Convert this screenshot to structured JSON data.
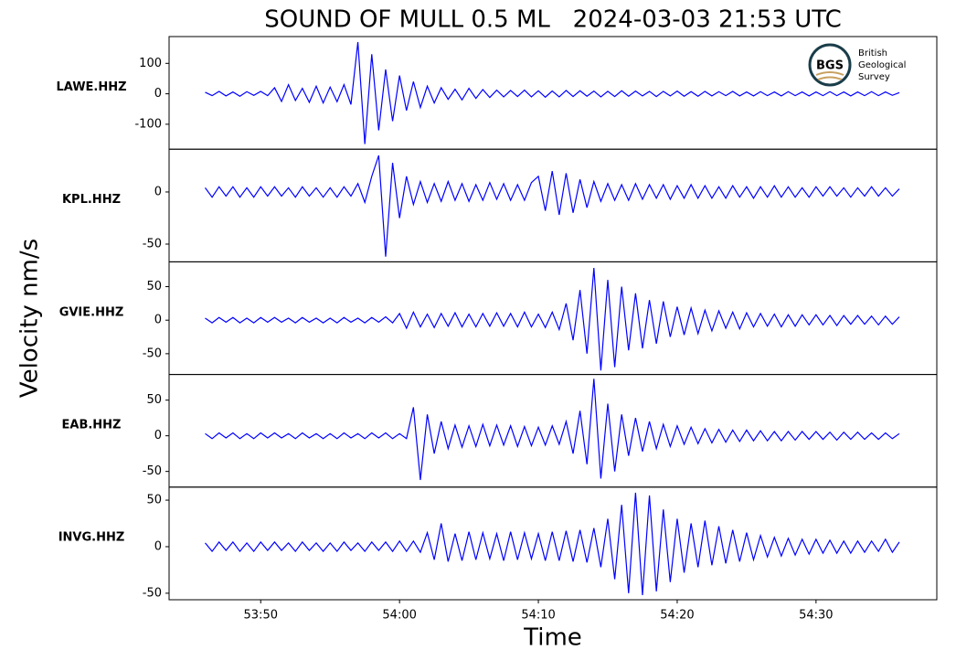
{
  "chart_data": {
    "type": "line",
    "title": "SOUND OF MULL 0.5 ML   2024-03-03 21:53 UTC",
    "y_label": "Velocity nm/s",
    "x_label": "Time",
    "logo": {
      "badge": "BGS",
      "lines": [
        "British",
        "Geological",
        "Survey"
      ]
    },
    "xlim": [
      3223.4,
      3278.7
    ],
    "xticks": [
      {
        "value": 3230,
        "label": "53:50"
      },
      {
        "value": 3240,
        "label": "54:00"
      },
      {
        "value": 3250,
        "label": "54:10"
      },
      {
        "value": 3260,
        "label": "54:20"
      },
      {
        "value": 3270,
        "label": "54:30"
      }
    ],
    "x": [
      3226,
      3226.5,
      3227,
      3227.5,
      3228,
      3228.5,
      3229,
      3229.5,
      3230,
      3230.5,
      3231,
      3231.5,
      3232,
      3232.5,
      3233,
      3233.5,
      3234,
      3234.5,
      3235,
      3235.5,
      3236,
      3236.5,
      3237,
      3237.5,
      3238,
      3238.5,
      3239,
      3239.5,
      3240,
      3240.5,
      3241,
      3241.5,
      3242,
      3242.5,
      3243,
      3243.5,
      3244,
      3244.5,
      3245,
      3245.5,
      3246,
      3246.5,
      3247,
      3247.5,
      3248,
      3248.5,
      3249,
      3249.5,
      3250,
      3250.5,
      3251,
      3251.5,
      3252,
      3252.5,
      3253,
      3253.5,
      3254,
      3254.5,
      3255,
      3255.5,
      3256,
      3256.5,
      3257,
      3257.5,
      3258,
      3258.5,
      3259,
      3259.5,
      3260,
      3260.5,
      3261,
      3261.5,
      3262,
      3262.5,
      3263,
      3263.5,
      3264,
      3264.5,
      3265,
      3265.5,
      3266,
      3266.5,
      3267,
      3267.5,
      3268,
      3268.5,
      3269,
      3269.5,
      3270,
      3270.5,
      3271,
      3271.5,
      3272,
      3272.5,
      3273,
      3273.5,
      3274,
      3274.5,
      3275,
      3275.5,
      3276
    ],
    "series": [
      {
        "name": "LAWE.HHZ",
        "color": "#0000ff",
        "ylim": [
          -182,
          188
        ],
        "yticks": [
          -100,
          0,
          100
        ],
        "values": [
          5,
          -6,
          8,
          -7,
          6,
          -8,
          7,
          -5,
          8,
          -6,
          20,
          -25,
          30,
          -22,
          18,
          -28,
          25,
          -30,
          22,
          -26,
          30,
          -35,
          170,
          -165,
          130,
          -120,
          80,
          -90,
          60,
          -55,
          40,
          -45,
          25,
          -30,
          20,
          -18,
          15,
          -20,
          18,
          -15,
          14,
          -12,
          12,
          -10,
          11,
          -9,
          12,
          -10,
          10,
          -11,
          9,
          -10,
          11,
          -9,
          10,
          -8,
          9,
          -10,
          8,
          -9,
          10,
          -8,
          9,
          -7,
          8,
          -9,
          8,
          -7,
          9,
          -8,
          7,
          -8,
          8,
          -7,
          7,
          -6,
          8,
          -7,
          6,
          -7,
          7,
          -6,
          6,
          -7,
          7,
          -6,
          6,
          -7,
          6,
          -6,
          7,
          -6,
          6,
          -7,
          6,
          -6,
          7,
          -6,
          6,
          -5,
          4
        ]
      },
      {
        "name": "KPL.HHZ",
        "color": "#0000ff",
        "ylim": [
          -67,
          41
        ],
        "yticks": [
          -50,
          0
        ],
        "values": [
          4,
          -5,
          5,
          -4,
          5,
          -5,
          4,
          -5,
          5,
          -4,
          5,
          -4,
          4,
          -5,
          5,
          -4,
          4,
          -5,
          4,
          -5,
          5,
          -4,
          8,
          -10,
          15,
          35,
          -62,
          28,
          -25,
          15,
          -12,
          10,
          -10,
          8,
          -9,
          10,
          -8,
          8,
          -9,
          7,
          -8,
          9,
          -7,
          8,
          -8,
          7,
          -8,
          9,
          15,
          -18,
          20,
          -22,
          18,
          -20,
          12,
          -15,
          10,
          -9,
          8,
          -8,
          7,
          -8,
          8,
          -7,
          7,
          -6,
          7,
          -7,
          6,
          -6,
          7,
          -6,
          6,
          -6,
          5,
          -6,
          6,
          -5,
          5,
          -6,
          5,
          -5,
          6,
          -5,
          5,
          -5,
          4,
          -5,
          5,
          -4,
          5,
          -4,
          4,
          -5,
          4,
          -4,
          5,
          -4,
          4,
          -4,
          3
        ]
      },
      {
        "name": "GVIE.HHZ",
        "color": "#0000ff",
        "ylim": [
          -81,
          87
        ],
        "yticks": [
          -50,
          0,
          50
        ],
        "values": [
          3,
          -4,
          4,
          -3,
          4,
          -4,
          3,
          -4,
          4,
          -3,
          4,
          -3,
          3,
          -4,
          4,
          -3,
          3,
          -4,
          3,
          -4,
          4,
          -3,
          3,
          -4,
          4,
          -3,
          5,
          -4,
          10,
          -12,
          12,
          -10,
          9,
          -11,
          10,
          -9,
          11,
          -10,
          9,
          -10,
          10,
          -9,
          11,
          -9,
          10,
          -10,
          12,
          -10,
          9,
          -11,
          12,
          -14,
          25,
          -30,
          45,
          -50,
          78,
          -75,
          60,
          -70,
          50,
          -45,
          40,
          -42,
          30,
          -35,
          28,
          -25,
          20,
          -22,
          18,
          -20,
          15,
          -16,
          14,
          -12,
          12,
          -13,
          11,
          -10,
          10,
          -9,
          9,
          -10,
          8,
          -9,
          8,
          -7,
          8,
          -7,
          7,
          -8,
          7,
          -6,
          7,
          -6,
          6,
          -7,
          6,
          -6,
          5
        ]
      },
      {
        "name": "EAB.HHZ",
        "color": "#0000ff",
        "ylim": [
          -72,
          86
        ],
        "yticks": [
          -50,
          0,
          50
        ],
        "values": [
          3,
          -4,
          4,
          -3,
          4,
          -4,
          3,
          -4,
          4,
          -3,
          4,
          -3,
          3,
          -4,
          4,
          -3,
          3,
          -4,
          3,
          -4,
          4,
          -3,
          3,
          -4,
          4,
          -3,
          4,
          -4,
          3,
          -4,
          40,
          -62,
          30,
          -25,
          20,
          -18,
          15,
          -16,
          14,
          -15,
          16,
          -14,
          15,
          -13,
          14,
          -15,
          13,
          -14,
          12,
          -13,
          14,
          -12,
          20,
          -25,
          35,
          -40,
          80,
          -60,
          45,
          -50,
          30,
          -28,
          25,
          -22,
          20,
          -18,
          16,
          -15,
          14,
          -12,
          12,
          -11,
          10,
          -10,
          9,
          -9,
          8,
          -8,
          8,
          -7,
          7,
          -7,
          6,
          -7,
          6,
          -6,
          6,
          -5,
          6,
          -5,
          5,
          -6,
          5,
          -5,
          5,
          -5,
          4,
          -5,
          4,
          -4,
          3
        ]
      },
      {
        "name": "INVG.HHZ",
        "color": "#0000ff",
        "ylim": [
          -57,
          64
        ],
        "yticks": [
          -50,
          0,
          50
        ],
        "values": [
          4,
          -5,
          5,
          -4,
          5,
          -5,
          4,
          -5,
          5,
          -4,
          5,
          -4,
          4,
          -5,
          5,
          -4,
          4,
          -5,
          4,
          -5,
          5,
          -4,
          4,
          -5,
          5,
          -4,
          5,
          -5,
          6,
          -5,
          6,
          -6,
          15,
          -14,
          25,
          -16,
          14,
          -15,
          16,
          -14,
          15,
          -13,
          14,
          -15,
          16,
          -14,
          15,
          -13,
          14,
          -15,
          16,
          -15,
          17,
          -16,
          18,
          -17,
          20,
          -22,
          30,
          -35,
          45,
          -50,
          58,
          -52,
          55,
          -48,
          40,
          -38,
          30,
          -28,
          25,
          -22,
          28,
          -20,
          22,
          -18,
          18,
          -16,
          15,
          -14,
          12,
          -11,
          10,
          -10,
          9,
          -9,
          8,
          -8,
          8,
          -7,
          7,
          -7,
          6,
          -7,
          6,
          -6,
          6,
          -5,
          8,
          -6,
          5
        ]
      }
    ]
  }
}
